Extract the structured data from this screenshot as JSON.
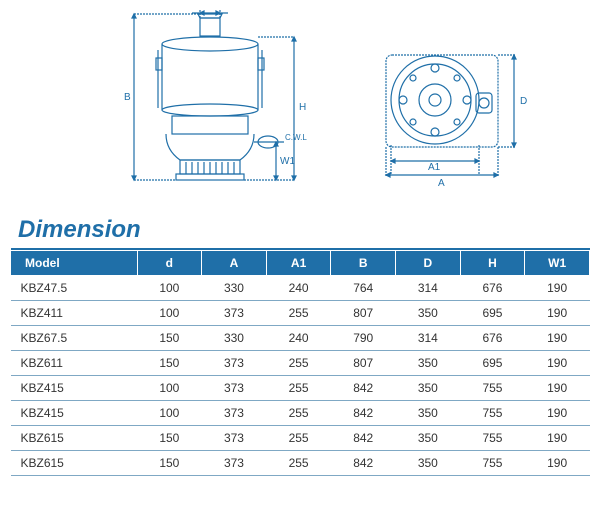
{
  "title": "Dimension",
  "diagram": {
    "labels": {
      "d": "d",
      "B": "B",
      "H": "H",
      "W1": "W1",
      "CWL": "C.W.L",
      "A1": "A1",
      "A": "A",
      "D": "D"
    },
    "stroke_color": "#1f6fa8",
    "stroke_width": 1.2
  },
  "table": {
    "header_bg": "#1f6fa8",
    "header_fg": "#ffffff",
    "row_border": "#7fa8c4",
    "columns": [
      "Model",
      "d",
      "A",
      "A1",
      "B",
      "D",
      "H",
      "W1"
    ],
    "rows": [
      [
        "KBZ47.5",
        "100",
        "330",
        "240",
        "764",
        "314",
        "676",
        "190"
      ],
      [
        "KBZ411",
        "100",
        "373",
        "255",
        "807",
        "350",
        "695",
        "190"
      ],
      [
        "KBZ67.5",
        "150",
        "330",
        "240",
        "790",
        "314",
        "676",
        "190"
      ],
      [
        "KBZ611",
        "150",
        "373",
        "255",
        "807",
        "350",
        "695",
        "190"
      ],
      [
        "KBZ415",
        "100",
        "373",
        "255",
        "842",
        "350",
        "755",
        "190"
      ],
      [
        "KBZ415",
        "100",
        "373",
        "255",
        "842",
        "350",
        "755",
        "190"
      ],
      [
        "KBZ615",
        "150",
        "373",
        "255",
        "842",
        "350",
        "755",
        "190"
      ],
      [
        "KBZ615",
        "150",
        "373",
        "255",
        "842",
        "350",
        "755",
        "190"
      ]
    ]
  }
}
